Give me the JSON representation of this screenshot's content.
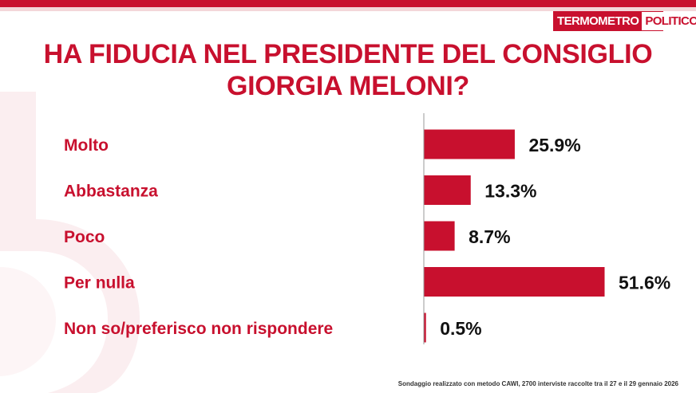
{
  "logo": {
    "part1": "TERMOMETRO",
    "part2": "POLITICO"
  },
  "title_lines": [
    "HA FIDUCIA NEL PRESIDENTE DEL CONSIGLIO",
    "GIORGIA MELONI?"
  ],
  "footnote": "Sondaggio realizzato con metodo CAWI, 2700 interviste raccolte tra il 27 e il 29 gennaio 2026",
  "colors": {
    "accent": "#c8102e",
    "bar": "#c8102e",
    "value_text": "#111111"
  },
  "chart_data": {
    "type": "bar",
    "orientation": "horizontal",
    "categories": [
      "Molto",
      "Abbastanza",
      "Poco",
      "Per nulla",
      "Non so/preferisco non rispondere"
    ],
    "values": [
      25.9,
      13.3,
      8.7,
      51.6,
      0.5
    ],
    "value_labels": [
      "25.9%",
      "13.3%",
      "8.7%",
      "51.6%",
      "0.5%"
    ],
    "title": "HA FIDUCIA NEL PRESIDENTE DEL CONSIGLIO GIORGIA MELONI?",
    "xlabel": "",
    "ylabel": "",
    "xlim": [
      0,
      51.6
    ],
    "grid": false,
    "legend": "none"
  }
}
